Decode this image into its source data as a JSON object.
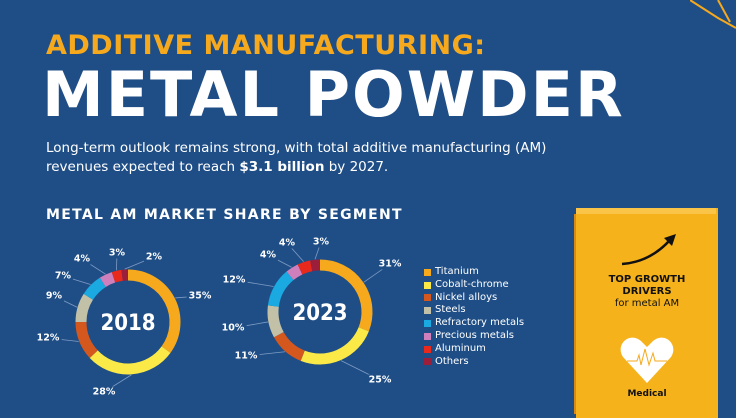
{
  "header": {
    "kicker": "ADDITIVE MANUFACTURING:",
    "title": "METAL POWDER",
    "intro_part1": "Long-term outlook remains strong, with total additive manufacturing (AM) revenues expected to reach ",
    "intro_bold": "$3.1 billion",
    "intro_part2": " by 2027."
  },
  "chart_data": [
    {
      "type": "pie",
      "variant": "donut",
      "title": "METAL AM MARKET SHARE BY SEGMENT",
      "center_label": "2018",
      "categories": [
        "Titanium",
        "Cobalt-chrome",
        "Nickel alloys",
        "Steels",
        "Refractory metals",
        "Precious metals",
        "Aluminum",
        "Others"
      ],
      "values": [
        35,
        28,
        12,
        9,
        7,
        4,
        3,
        2
      ],
      "labels": [
        "35%",
        "28%",
        "12%",
        "9%",
        "7%",
        "4%",
        "3%",
        "2%"
      ]
    },
    {
      "type": "pie",
      "variant": "donut",
      "center_label": "2023",
      "categories": [
        "Titanium",
        "Cobalt-chrome",
        "Nickel alloys",
        "Steels",
        "Refractory metals",
        "Precious metals",
        "Aluminum",
        "Others"
      ],
      "values": [
        31,
        25,
        11,
        10,
        12,
        4,
        4,
        3
      ],
      "labels": [
        "31%",
        "25%",
        "11%",
        "10%",
        "12%",
        "4%",
        "4%",
        "3%"
      ]
    }
  ],
  "legend": {
    "items": [
      {
        "label": "Titanium",
        "color": "#f6a91c"
      },
      {
        "label": "Cobalt-chrome",
        "color": "#fbe947"
      },
      {
        "label": "Nickel alloys",
        "color": "#d4581e"
      },
      {
        "label": "Steels",
        "color": "#c2c0a6"
      },
      {
        "label": "Refractory metals",
        "color": "#1ba9e1"
      },
      {
        "label": "Precious metals",
        "color": "#d07fbd"
      },
      {
        "label": "Aluminum",
        "color": "#e8291c"
      },
      {
        "label": "Others",
        "color": "#9b1e3a"
      }
    ]
  },
  "drivers": {
    "title1": "TOP GROWTH",
    "title2": "DRIVERS",
    "subtitle": "for metal AM",
    "item": "Medical",
    "icon": "heart-ecg-icon",
    "arrow_icon": "trend-arrow-icon"
  },
  "colors": {
    "background": "#1f4e87",
    "accent": "#f6a91c"
  }
}
